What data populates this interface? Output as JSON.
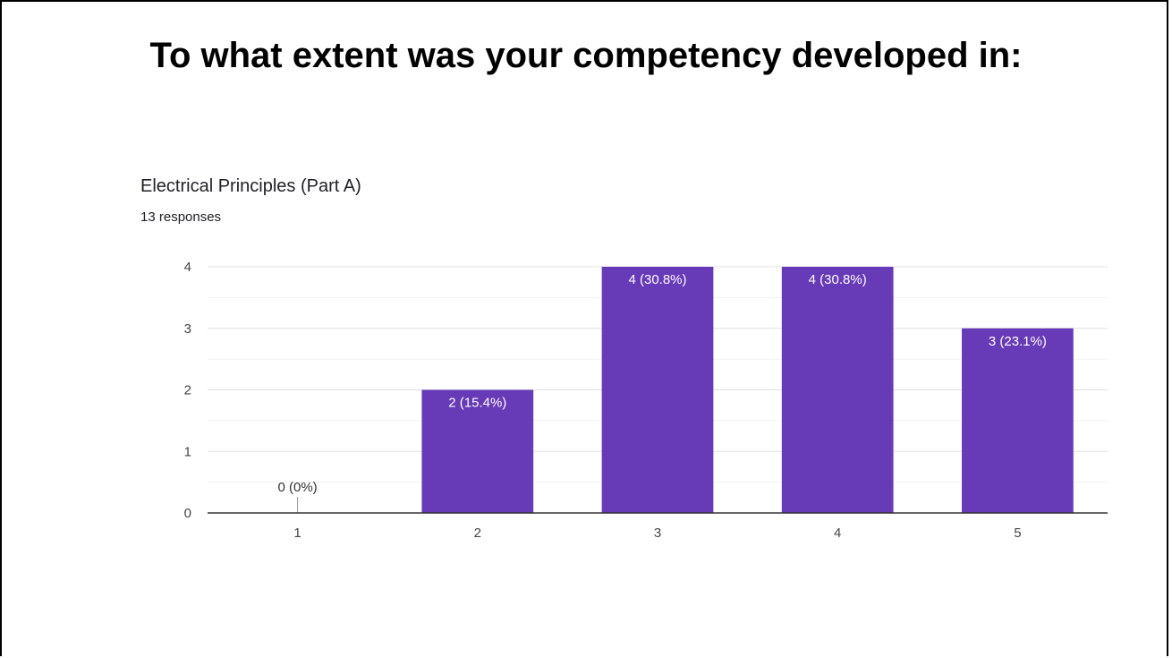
{
  "slide": {
    "title": "To what extent was your competency developed in:"
  },
  "chart_data": {
    "type": "bar",
    "title": "Electrical Principles (Part A)",
    "subtitle": "13 responses",
    "categories": [
      "1",
      "2",
      "3",
      "4",
      "5"
    ],
    "values": [
      0,
      2,
      4,
      4,
      3
    ],
    "data_labels": [
      "0 (0%)",
      "2 (15.4%)",
      "4 (30.8%)",
      "4 (30.8%)",
      "3 (23.1%)"
    ],
    "yticks": [
      "0",
      "1",
      "2",
      "3",
      "4"
    ],
    "ylim": [
      0,
      4
    ],
    "xlabel": "",
    "ylabel": "",
    "grid": true,
    "bar_color": "#673ab7"
  }
}
